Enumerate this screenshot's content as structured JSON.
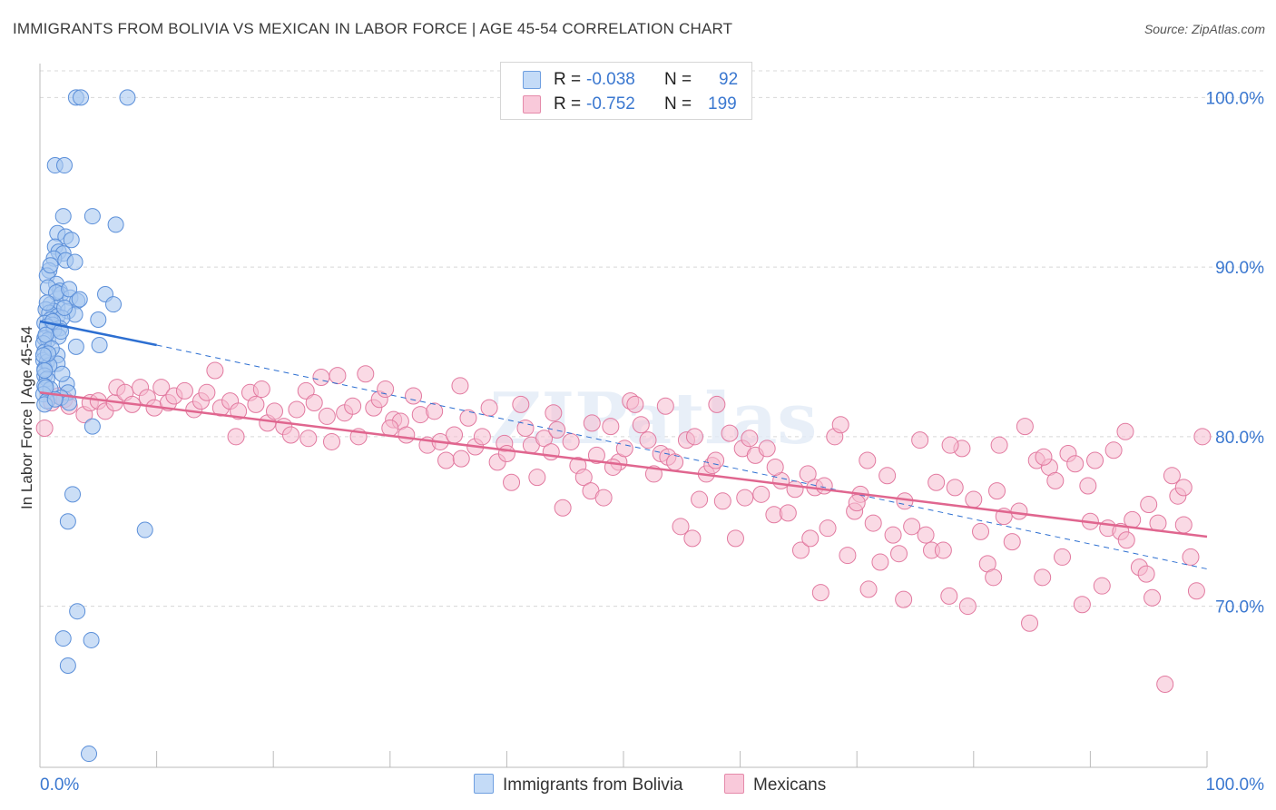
{
  "title": "IMMIGRANTS FROM BOLIVIA VS MEXICAN IN LABOR FORCE | AGE 45-54 CORRELATION CHART",
  "source": "Source: ZipAtlas.com",
  "legend": {
    "r_label": "R =",
    "n_label": "N =",
    "bolivia": {
      "r": "-0.038",
      "n": "92"
    },
    "mexicans": {
      "r": "-0.752",
      "n": "199"
    }
  },
  "colors": {
    "bolivia_fill": "#a9c8f0",
    "bolivia_stroke": "#5b8fd9",
    "bolivia_line": "#2d6fd1",
    "mexican_fill": "#f6bcd0",
    "mexican_stroke": "#e27aa0",
    "mexican_line": "#e0668f",
    "grid": "#d8d8d8",
    "tick_label": "#3b78d0"
  },
  "watermark": "ZIPatlas",
  "chart_data": {
    "type": "scatter",
    "title": "IMMIGRANTS FROM BOLIVIA VS MEXICAN IN LABOR FORCE | AGE 45-54 CORRELATION CHART",
    "xlabel": "",
    "ylabel": "In Labor Force | Age 45-54",
    "xlim": [
      0,
      100
    ],
    "ylim": [
      60.5,
      102
    ],
    "x_tick_labels": [
      "0.0%",
      "100.0%"
    ],
    "y_ticks": [
      70,
      80,
      90,
      100
    ],
    "y_tick_labels": [
      "70.0%",
      "80.0%",
      "90.0%",
      "100.0%"
    ],
    "legend_labels": [
      "Immigrants from Bolivia",
      "Mexicans"
    ],
    "series": [
      {
        "name": "Immigrants from Bolivia",
        "r": -0.038,
        "n": 92,
        "trend": {
          "x_start": 0,
          "y_start": 86.8,
          "x_end": 10,
          "y_end": 85.4,
          "dashed_to_x": 100,
          "dashed_to_y": 72.2
        },
        "points": [
          [
            3.1,
            100
          ],
          [
            3.5,
            100
          ],
          [
            7.5,
            100
          ],
          [
            1.3,
            96
          ],
          [
            2.1,
            96
          ],
          [
            4.5,
            93
          ],
          [
            2.0,
            93
          ],
          [
            6.5,
            92.5
          ],
          [
            1.5,
            92
          ],
          [
            2.2,
            91.8
          ],
          [
            1.3,
            91.2
          ],
          [
            2.7,
            91.6
          ],
          [
            1.6,
            90.9
          ],
          [
            2.0,
            90.8
          ],
          [
            1.2,
            90.5
          ],
          [
            2.2,
            90.4
          ],
          [
            3.0,
            90.3
          ],
          [
            0.8,
            89.8
          ],
          [
            0.6,
            89.5
          ],
          [
            1.4,
            89.0
          ],
          [
            1.7,
            88.6
          ],
          [
            0.7,
            88.8
          ],
          [
            1.8,
            88.4
          ],
          [
            5.6,
            88.4
          ],
          [
            2.6,
            88.2
          ],
          [
            3.2,
            88.0
          ],
          [
            0.9,
            87.8
          ],
          [
            1.5,
            87.6
          ],
          [
            6.3,
            87.8
          ],
          [
            0.5,
            87.5
          ],
          [
            1.2,
            87.4
          ],
          [
            0.8,
            87.3
          ],
          [
            2.4,
            87.4
          ],
          [
            3.0,
            87.2
          ],
          [
            1.5,
            87.1
          ],
          [
            1.9,
            87.0
          ],
          [
            0.9,
            86.9
          ],
          [
            5.0,
            86.9
          ],
          [
            0.4,
            86.7
          ],
          [
            1.1,
            86.6
          ],
          [
            0.6,
            86.5
          ],
          [
            1.7,
            86.4
          ],
          [
            1.2,
            86.3
          ],
          [
            0.4,
            85.8
          ],
          [
            0.7,
            85.7
          ],
          [
            1.6,
            85.9
          ],
          [
            0.3,
            85.5
          ],
          [
            3.1,
            85.3
          ],
          [
            5.1,
            85.4
          ],
          [
            0.4,
            85.0
          ],
          [
            1.5,
            84.8
          ],
          [
            0.3,
            84.5
          ],
          [
            0.6,
            84.4
          ],
          [
            1.5,
            84.3
          ],
          [
            0.4,
            84.0
          ],
          [
            0.8,
            84.2
          ],
          [
            0.4,
            83.6
          ],
          [
            0.6,
            83.4
          ],
          [
            0.4,
            83.0
          ],
          [
            2.3,
            83.1
          ],
          [
            0.9,
            82.8
          ],
          [
            2.4,
            82.6
          ],
          [
            0.3,
            82.5
          ],
          [
            1.8,
            82.3
          ],
          [
            0.6,
            82.1
          ],
          [
            0.4,
            81.9
          ],
          [
            2.5,
            82.0
          ],
          [
            1.3,
            82.2
          ],
          [
            4.5,
            80.6
          ],
          [
            2.8,
            76.6
          ],
          [
            2.4,
            75.0
          ],
          [
            9.0,
            74.5
          ],
          [
            3.2,
            69.7
          ],
          [
            2.0,
            68.1
          ],
          [
            4.4,
            68.0
          ],
          [
            2.4,
            66.5
          ],
          [
            4.2,
            61.3
          ],
          [
            0.5,
            86.0
          ],
          [
            1.0,
            85.2
          ],
          [
            0.7,
            84.9
          ],
          [
            1.9,
            83.7
          ],
          [
            0.5,
            82.9
          ],
          [
            2.1,
            87.6
          ],
          [
            1.4,
            88.5
          ],
          [
            0.9,
            90.1
          ],
          [
            2.5,
            88.7
          ],
          [
            0.3,
            84.8
          ],
          [
            1.1,
            86.8
          ],
          [
            0.6,
            87.9
          ],
          [
            3.4,
            88.1
          ],
          [
            1.8,
            86.2
          ],
          [
            0.4,
            83.9
          ]
        ]
      },
      {
        "name": "Mexicans",
        "r": -0.752,
        "n": 199,
        "trend": {
          "x_start": 0,
          "y_start": 82.6,
          "x_end": 100,
          "y_end": 74.1
        },
        "points": [
          [
            0.4,
            80.5
          ],
          [
            1.0,
            82.0
          ],
          [
            1.6,
            82.4
          ],
          [
            2.1,
            82.2
          ],
          [
            2.5,
            81.8
          ],
          [
            3.8,
            81.3
          ],
          [
            4.3,
            82.0
          ],
          [
            5.0,
            82.1
          ],
          [
            5.6,
            81.5
          ],
          [
            6.4,
            82.0
          ],
          [
            6.6,
            82.9
          ],
          [
            7.3,
            82.6
          ],
          [
            7.9,
            81.9
          ],
          [
            8.6,
            82.9
          ],
          [
            9.2,
            82.3
          ],
          [
            9.8,
            81.7
          ],
          [
            10.4,
            82.9
          ],
          [
            11.0,
            82.0
          ],
          [
            11.5,
            82.4
          ],
          [
            12.4,
            82.7
          ],
          [
            13.2,
            81.6
          ],
          [
            13.8,
            82.1
          ],
          [
            14.3,
            82.6
          ],
          [
            15.0,
            83.9
          ],
          [
            15.5,
            81.7
          ],
          [
            16.3,
            82.1
          ],
          [
            17.0,
            81.5
          ],
          [
            16.8,
            80.0
          ],
          [
            18.0,
            82.6
          ],
          [
            18.5,
            81.9
          ],
          [
            19.0,
            82.8
          ],
          [
            19.5,
            80.8
          ],
          [
            20.1,
            81.5
          ],
          [
            20.9,
            80.6
          ],
          [
            21.5,
            80.1
          ],
          [
            22.0,
            81.6
          ],
          [
            22.8,
            82.7
          ],
          [
            23.5,
            82.0
          ],
          [
            24.1,
            83.5
          ],
          [
            24.6,
            81.2
          ],
          [
            25.0,
            79.7
          ],
          [
            25.5,
            83.6
          ],
          [
            26.1,
            81.4
          ],
          [
            26.8,
            81.8
          ],
          [
            27.3,
            80.0
          ],
          [
            27.9,
            83.7
          ],
          [
            28.6,
            81.7
          ],
          [
            29.1,
            82.2
          ],
          [
            29.6,
            82.8
          ],
          [
            30.3,
            81.0
          ],
          [
            30.9,
            80.9
          ],
          [
            31.4,
            80.1
          ],
          [
            32.0,
            82.4
          ],
          [
            32.6,
            81.3
          ],
          [
            33.2,
            79.5
          ],
          [
            33.8,
            81.5
          ],
          [
            34.3,
            79.7
          ],
          [
            34.8,
            78.6
          ],
          [
            35.5,
            80.1
          ],
          [
            36.1,
            78.7
          ],
          [
            36.7,
            81.1
          ],
          [
            37.3,
            79.4
          ],
          [
            37.9,
            80.0
          ],
          [
            38.5,
            81.7
          ],
          [
            39.2,
            78.5
          ],
          [
            39.8,
            79.6
          ],
          [
            40.4,
            77.3
          ],
          [
            41.2,
            81.9
          ],
          [
            41.6,
            80.5
          ],
          [
            42.1,
            79.5
          ],
          [
            42.6,
            77.6
          ],
          [
            43.2,
            79.9
          ],
          [
            43.8,
            79.1
          ],
          [
            44.3,
            80.4
          ],
          [
            44.8,
            75.8
          ],
          [
            45.5,
            79.7
          ],
          [
            46.1,
            78.3
          ],
          [
            46.6,
            77.6
          ],
          [
            47.2,
            76.8
          ],
          [
            47.7,
            78.9
          ],
          [
            48.3,
            76.4
          ],
          [
            48.9,
            80.6
          ],
          [
            49.6,
            78.5
          ],
          [
            50.1,
            79.3
          ],
          [
            50.6,
            82.1
          ],
          [
            51.0,
            81.9
          ],
          [
            51.5,
            80.7
          ],
          [
            52.1,
            79.8
          ],
          [
            52.6,
            77.8
          ],
          [
            53.2,
            79.0
          ],
          [
            53.8,
            78.8
          ],
          [
            54.4,
            78.5
          ],
          [
            54.9,
            74.7
          ],
          [
            55.4,
            79.8
          ],
          [
            55.9,
            74.0
          ],
          [
            56.5,
            76.3
          ],
          [
            57.1,
            77.8
          ],
          [
            57.6,
            78.3
          ],
          [
            58.0,
            81.9
          ],
          [
            58.5,
            76.2
          ],
          [
            59.1,
            80.2
          ],
          [
            59.6,
            74.0
          ],
          [
            60.2,
            79.3
          ],
          [
            60.8,
            79.9
          ],
          [
            61.3,
            78.9
          ],
          [
            61.8,
            76.6
          ],
          [
            62.3,
            79.3
          ],
          [
            62.9,
            75.4
          ],
          [
            63.5,
            77.4
          ],
          [
            64.1,
            75.5
          ],
          [
            64.7,
            76.9
          ],
          [
            65.2,
            73.3
          ],
          [
            65.8,
            77.8
          ],
          [
            66.4,
            77.0
          ],
          [
            66.9,
            70.8
          ],
          [
            67.5,
            74.6
          ],
          [
            68.1,
            80.0
          ],
          [
            68.6,
            80.7
          ],
          [
            69.2,
            73.0
          ],
          [
            69.8,
            75.6
          ],
          [
            70.3,
            76.6
          ],
          [
            70.9,
            78.6
          ],
          [
            71.4,
            74.9
          ],
          [
            72.0,
            72.6
          ],
          [
            72.6,
            77.7
          ],
          [
            73.1,
            74.2
          ],
          [
            73.6,
            73.1
          ],
          [
            74.1,
            76.2
          ],
          [
            74.7,
            74.7
          ],
          [
            75.4,
            79.8
          ],
          [
            75.9,
            74.2
          ],
          [
            76.4,
            73.3
          ],
          [
            76.8,
            77.3
          ],
          [
            77.4,
            73.3
          ],
          [
            77.9,
            70.6
          ],
          [
            78.4,
            77.0
          ],
          [
            79.0,
            79.3
          ],
          [
            79.5,
            70.0
          ],
          [
            80.0,
            76.3
          ],
          [
            80.6,
            74.4
          ],
          [
            81.2,
            72.5
          ],
          [
            81.7,
            71.7
          ],
          [
            82.2,
            79.5
          ],
          [
            82.6,
            75.3
          ],
          [
            83.3,
            73.8
          ],
          [
            83.9,
            75.6
          ],
          [
            84.4,
            80.6
          ],
          [
            84.8,
            69.0
          ],
          [
            85.4,
            78.6
          ],
          [
            85.9,
            71.7
          ],
          [
            86.5,
            78.2
          ],
          [
            87.0,
            77.4
          ],
          [
            87.6,
            72.9
          ],
          [
            88.1,
            79.0
          ],
          [
            88.7,
            78.4
          ],
          [
            89.3,
            70.1
          ],
          [
            89.8,
            77.1
          ],
          [
            90.4,
            78.6
          ],
          [
            91.0,
            71.2
          ],
          [
            91.5,
            74.6
          ],
          [
            92.0,
            79.2
          ],
          [
            92.6,
            74.4
          ],
          [
            93.1,
            73.9
          ],
          [
            93.6,
            75.1
          ],
          [
            94.2,
            72.3
          ],
          [
            94.8,
            71.9
          ],
          [
            95.3,
            70.5
          ],
          [
            95.8,
            74.9
          ],
          [
            96.4,
            65.4
          ],
          [
            97.0,
            77.7
          ],
          [
            97.5,
            76.5
          ],
          [
            98.0,
            74.8
          ],
          [
            98.6,
            72.9
          ],
          [
            99.1,
            70.9
          ],
          [
            99.6,
            80.0
          ],
          [
            47.3,
            80.8
          ],
          [
            49.1,
            78.2
          ],
          [
            53.6,
            81.8
          ],
          [
            56.1,
            80.0
          ],
          [
            57.9,
            78.6
          ],
          [
            60.4,
            76.4
          ],
          [
            63.0,
            78.2
          ],
          [
            66.0,
            74.0
          ],
          [
            67.2,
            77.1
          ],
          [
            70.0,
            76.1
          ],
          [
            71.0,
            71.0
          ],
          [
            74.0,
            70.4
          ],
          [
            78.0,
            79.5
          ],
          [
            82.0,
            76.8
          ],
          [
            86.0,
            78.8
          ],
          [
            90.0,
            75.0
          ],
          [
            93.0,
            80.3
          ],
          [
            95.0,
            76.0
          ],
          [
            98.0,
            77.0
          ],
          [
            44.0,
            81.4
          ],
          [
            40.0,
            79.0
          ],
          [
            36.0,
            83.0
          ],
          [
            30.0,
            80.5
          ],
          [
            23.0,
            79.9
          ]
        ]
      }
    ]
  }
}
